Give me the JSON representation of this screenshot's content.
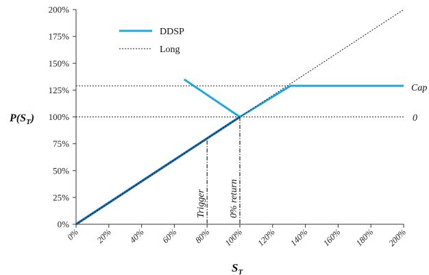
{
  "chart_data": {
    "type": "line",
    "title": "",
    "xlabel": "S",
    "xlabel_sub": "T",
    "ylabel_main": "P(S",
    "ylabel_sub": "T",
    "ylabel_close": ")",
    "xlim": [
      0,
      200
    ],
    "ylim": [
      0,
      200
    ],
    "x_ticks": [
      0,
      20,
      40,
      60,
      80,
      100,
      120,
      140,
      160,
      180,
      200
    ],
    "x_tick_labels": [
      "0%",
      "20%",
      "40%",
      "60%",
      "80%",
      "100%",
      "120%",
      "140%",
      "160%",
      "180%",
      "200%"
    ],
    "y_ticks": [
      0,
      25,
      50,
      75,
      100,
      125,
      150,
      175,
      200
    ],
    "y_tick_labels": [
      "0%",
      "25%",
      "50%",
      "75%",
      "100%",
      "125%",
      "150%",
      "175%",
      "200%"
    ],
    "legend_position": "top-left",
    "series": [
      {
        "name": "DDSP",
        "color": "#1fa8e0",
        "style": "solid",
        "segments": [
          [
            [
              0,
              0
            ],
            [
              100,
              100
            ],
            [
              131,
              129
            ],
            [
              200,
              129
            ]
          ],
          [
            [
              66,
              135
            ],
            [
              100,
              100
            ]
          ]
        ]
      },
      {
        "name": "Long",
        "color": "#111111",
        "style": "dotted",
        "segments": [
          [
            [
              0,
              0
            ],
            [
              200,
              200
            ]
          ]
        ]
      }
    ],
    "overlay": {
      "color": "#1a6fb0",
      "segment": [
        [
          0,
          0
        ],
        [
          100,
          100
        ]
      ]
    },
    "reference_lines": [
      {
        "label": "Cap",
        "y": 129,
        "style": "dotted"
      },
      {
        "label": "0",
        "y": 100,
        "style": "dotted"
      }
    ],
    "vertical_markers": [
      {
        "label": "Trigger",
        "x": 80,
        "y_top": 78
      },
      {
        "label": "0% return",
        "x": 100,
        "y_top": 100
      }
    ]
  }
}
